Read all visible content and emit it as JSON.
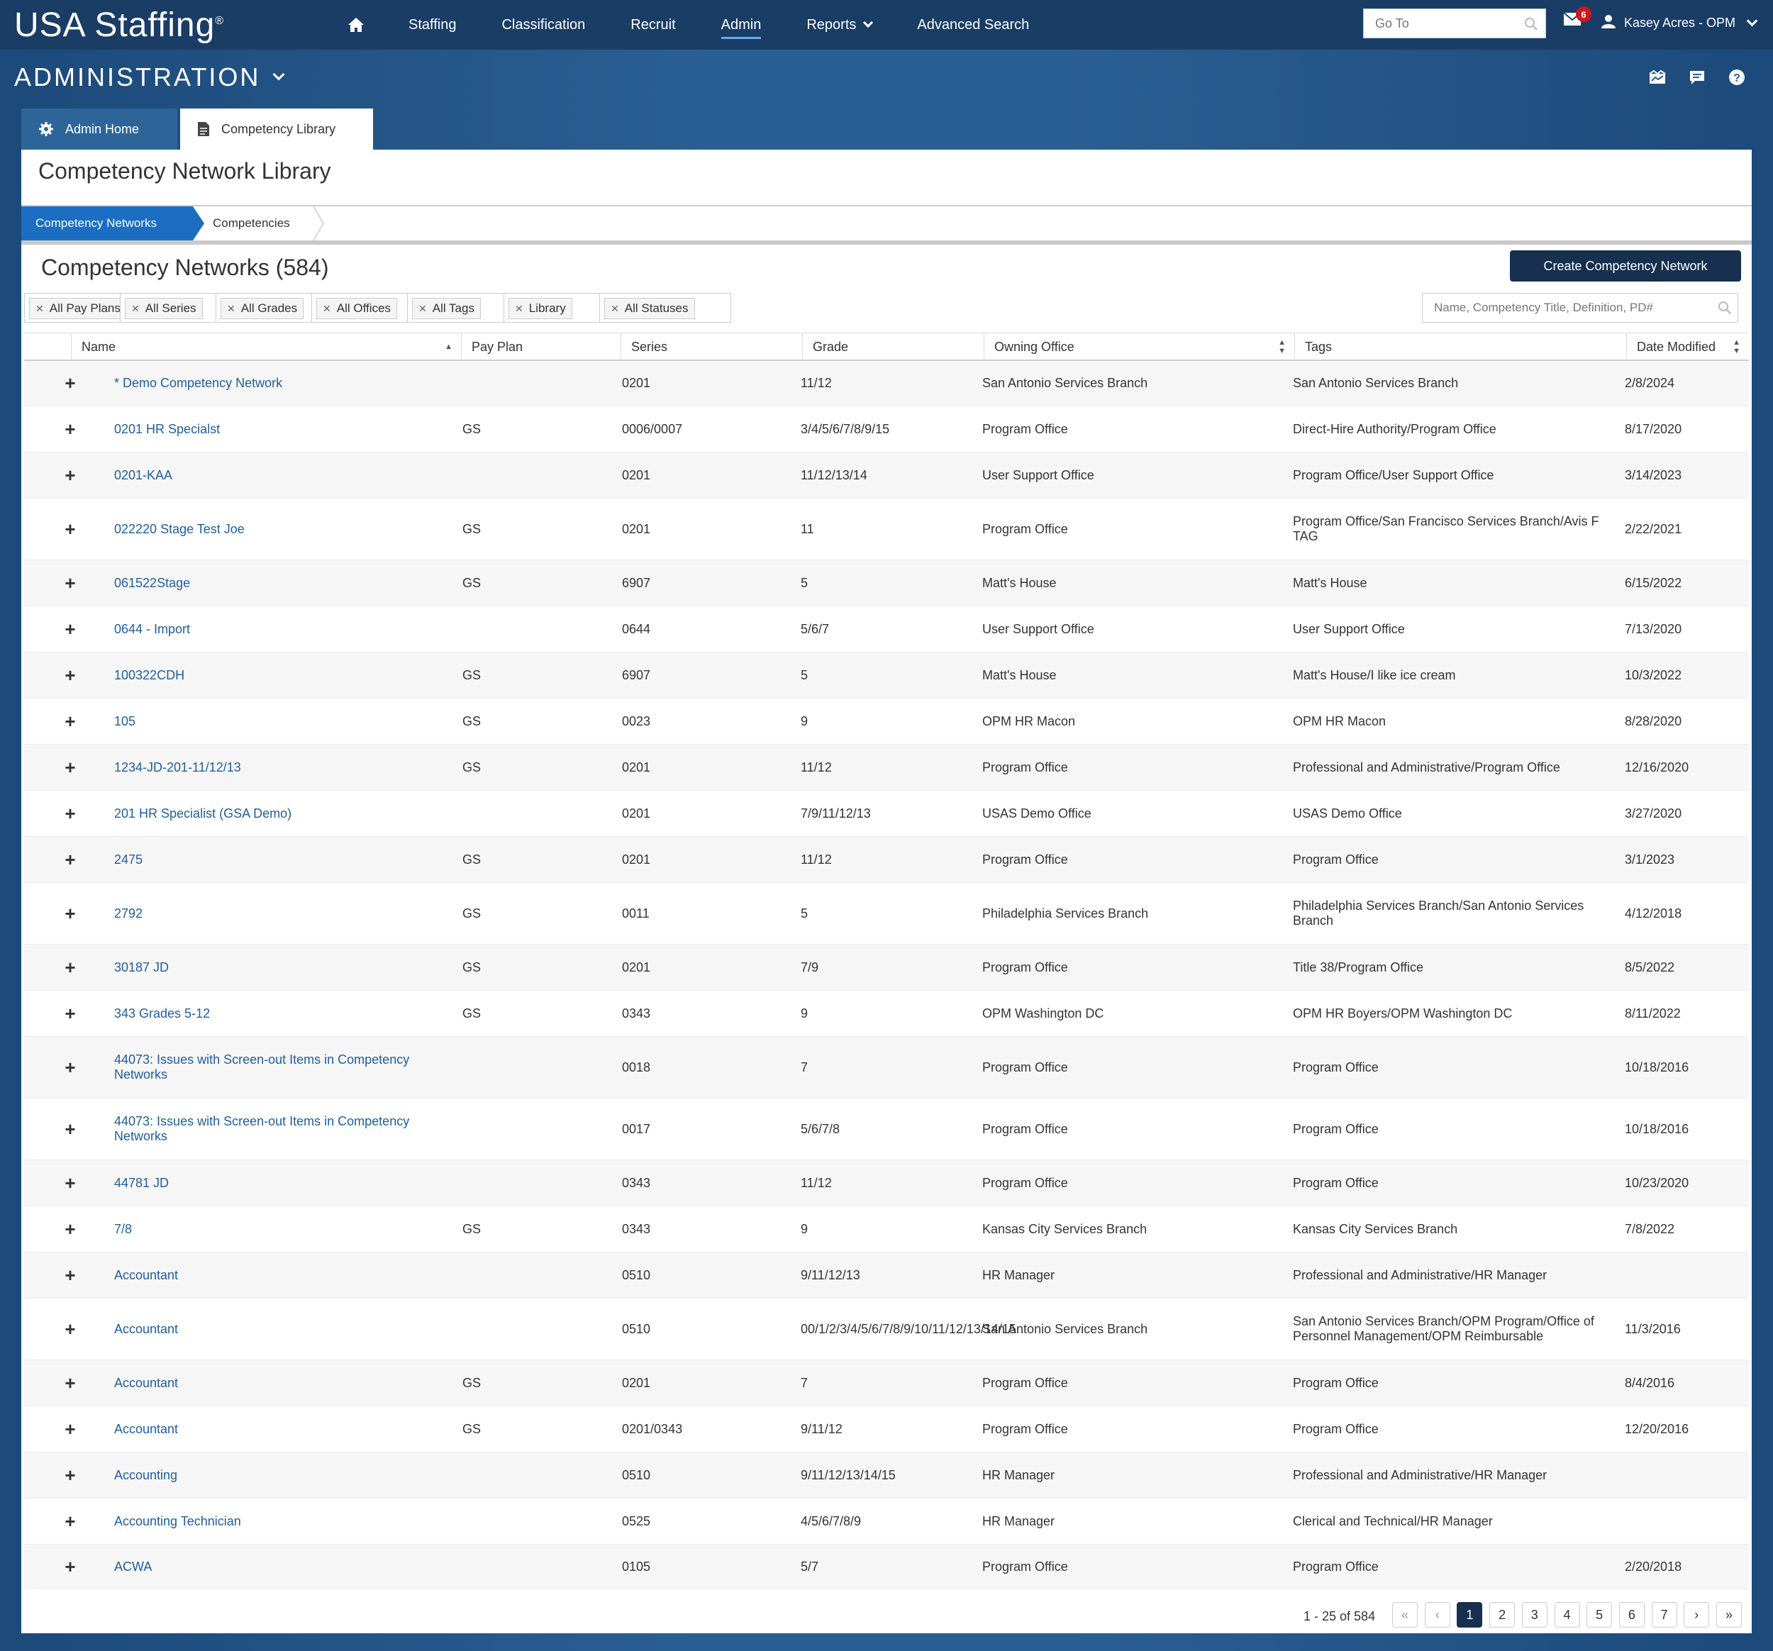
{
  "app": {
    "logo": "USA Staffing",
    "logo_mark": "®"
  },
  "nav": {
    "items": [
      {
        "label": "Staffing"
      },
      {
        "label": "Classification"
      },
      {
        "label": "Recruit"
      },
      {
        "label": "Admin",
        "active": true
      },
      {
        "label": "Reports",
        "dropdown": true
      },
      {
        "label": "Advanced Search"
      }
    ],
    "goto_placeholder": "Go To",
    "mail_count": "6",
    "user_name": "Kasey Acres - OPM"
  },
  "section": {
    "title": "ADMINISTRATION"
  },
  "page_tabs": [
    {
      "label": "Admin Home",
      "icon": "gear-icon"
    },
    {
      "label": "Competency Library",
      "icon": "document-icon",
      "active": true
    }
  ],
  "page": {
    "title": "Competency Network Library",
    "subtabs": [
      {
        "label": "Competency Networks",
        "active": true
      },
      {
        "label": "Competencies"
      }
    ],
    "list_title": "Competency Networks (584)",
    "create_button": "Create Competency Network",
    "filters": [
      {
        "label": "All Pay Plans"
      },
      {
        "label": "All Series"
      },
      {
        "label": "All Grades"
      },
      {
        "label": "All Offices"
      },
      {
        "label": "All Tags"
      },
      {
        "label": "Library"
      },
      {
        "label": "All Statuses"
      }
    ],
    "search_placeholder": "Name, Competency Title, Definition, PD#"
  },
  "table": {
    "columns": [
      "Name",
      "Pay Plan",
      "Series",
      "Grade",
      "Owning Office",
      "Tags",
      "Date Modified"
    ],
    "rows": [
      {
        "name": "* Demo Competency Network",
        "payplan": "",
        "series": "0201",
        "grade": "11/12",
        "office": "San Antonio Services Branch",
        "tags": "San Antonio Services Branch",
        "date": "2/8/2024"
      },
      {
        "name": "0201 HR Specialst",
        "payplan": "GS",
        "series": "0006/0007",
        "grade": "3/4/5/6/7/8/9/15",
        "office": "Program Office",
        "tags": "Direct-Hire Authority/Program Office",
        "date": "8/17/2020"
      },
      {
        "name": "0201-KAA",
        "payplan": "",
        "series": "0201",
        "grade": "11/12/13/14",
        "office": "User Support Office",
        "tags": "Program Office/User Support Office",
        "date": "3/14/2023"
      },
      {
        "name": "022220 Stage Test Joe",
        "payplan": "GS",
        "series": "0201",
        "grade": "11",
        "office": "Program Office",
        "tags": "Program Office/San Francisco Services Branch/Avis F TAG",
        "date": "2/22/2021"
      },
      {
        "name": "061522Stage",
        "payplan": "GS",
        "series": "6907",
        "grade": "5",
        "office": "Matt's House",
        "tags": "Matt's House",
        "date": "6/15/2022"
      },
      {
        "name": "0644 - Import",
        "payplan": "",
        "series": "0644",
        "grade": "5/6/7",
        "office": "User Support Office",
        "tags": "User Support Office",
        "date": "7/13/2020"
      },
      {
        "name": "100322CDH",
        "payplan": "GS",
        "series": "6907",
        "grade": "5",
        "office": "Matt's House",
        "tags": "Matt's House/I like ice cream",
        "date": "10/3/2022"
      },
      {
        "name": "105",
        "payplan": "GS",
        "series": "0023",
        "grade": "9",
        "office": "OPM HR Macon",
        "tags": "OPM HR Macon",
        "date": "8/28/2020"
      },
      {
        "name": "1234-JD-201-11/12/13",
        "payplan": "GS",
        "series": "0201",
        "grade": "11/12",
        "office": "Program Office",
        "tags": "Professional and Administrative/Program Office",
        "date": "12/16/2020"
      },
      {
        "name": "201 HR Specialist (GSA Demo)",
        "payplan": "",
        "series": "0201",
        "grade": "7/9/11/12/13",
        "office": "USAS Demo Office",
        "tags": "USAS Demo Office",
        "date": "3/27/2020"
      },
      {
        "name": "2475",
        "payplan": "GS",
        "series": "0201",
        "grade": "11/12",
        "office": "Program Office",
        "tags": "Program Office",
        "date": "3/1/2023"
      },
      {
        "name": "2792",
        "payplan": "GS",
        "series": "0011",
        "grade": "5",
        "office": "Philadelphia Services Branch",
        "tags": "Philadelphia Services Branch/San Antonio Services Branch",
        "date": "4/12/2018"
      },
      {
        "name": "30187 JD",
        "payplan": "GS",
        "series": "0201",
        "grade": "7/9",
        "office": "Program Office",
        "tags": "Title 38/Program Office",
        "date": "8/5/2022"
      },
      {
        "name": "343 Grades 5-12",
        "payplan": "GS",
        "series": "0343",
        "grade": "9",
        "office": "OPM Washington DC",
        "tags": "OPM HR Boyers/OPM Washington DC",
        "date": "8/11/2022"
      },
      {
        "name": "44073: Issues with Screen-out Items in Competency Networks",
        "payplan": "",
        "series": "0018",
        "grade": "7",
        "office": "Program Office",
        "tags": "Program Office",
        "date": "10/18/2016"
      },
      {
        "name": "44073: Issues with Screen-out Items in Competency Networks",
        "payplan": "",
        "series": "0017",
        "grade": "5/6/7/8",
        "office": "Program Office",
        "tags": "Program Office",
        "date": "10/18/2016"
      },
      {
        "name": "44781 JD",
        "payplan": "",
        "series": "0343",
        "grade": "11/12",
        "office": "Program Office",
        "tags": "Program Office",
        "date": "10/23/2020"
      },
      {
        "name": "7/8",
        "payplan": "GS",
        "series": "0343",
        "grade": "9",
        "office": "Kansas City Services Branch",
        "tags": "Kansas City Services Branch",
        "date": "7/8/2022"
      },
      {
        "name": "Accountant",
        "payplan": "",
        "series": "0510",
        "grade": "9/11/12/13",
        "office": "HR Manager",
        "tags": "Professional and Administrative/HR Manager",
        "date": ""
      },
      {
        "name": "Accountant",
        "payplan": "",
        "series": "0510",
        "grade": "00/1/2/3/4/5/6/7/8/9/10/11/12/13/14/15",
        "office": "San Antonio Services Branch",
        "tags": "San Antonio Services Branch/OPM Program/Office of Personnel Management/OPM Reimbursable",
        "date": "11/3/2016"
      },
      {
        "name": "Accountant",
        "payplan": "GS",
        "series": "0201",
        "grade": "7",
        "office": "Program Office",
        "tags": "Program Office",
        "date": "8/4/2016"
      },
      {
        "name": "Accountant",
        "payplan": "GS",
        "series": "0201/0343",
        "grade": "9/11/12",
        "office": "Program Office",
        "tags": "Program Office",
        "date": "12/20/2016"
      },
      {
        "name": "Accounting",
        "payplan": "",
        "series": "0510",
        "grade": "9/11/12/13/14/15",
        "office": "HR Manager",
        "tags": "Professional and Administrative/HR Manager",
        "date": ""
      },
      {
        "name": "Accounting Technician",
        "payplan": "",
        "series": "0525",
        "grade": "4/5/6/7/8/9",
        "office": "HR Manager",
        "tags": "Clerical and Technical/HR Manager",
        "date": ""
      },
      {
        "name": "ACWA",
        "payplan": "",
        "series": "0105",
        "grade": "5/7",
        "office": "Program Office",
        "tags": "Program Office",
        "date": "2/20/2018"
      }
    ]
  },
  "pagination": {
    "summary": "1 - 25 of 584",
    "pages": [
      "1",
      "2",
      "3",
      "4",
      "5",
      "6",
      "7"
    ],
    "current": "1"
  }
}
